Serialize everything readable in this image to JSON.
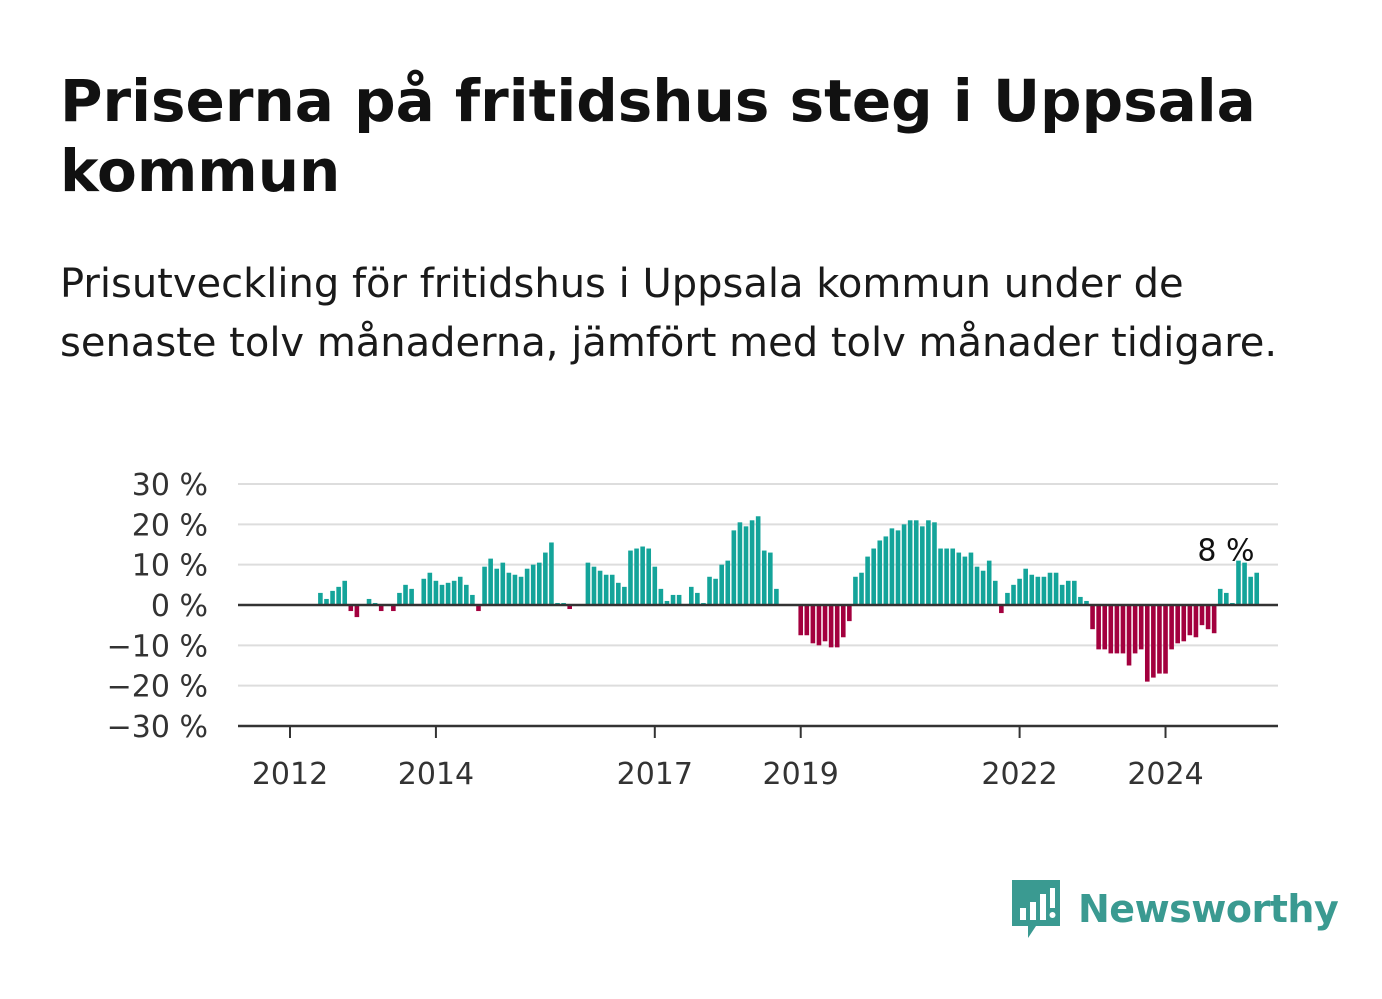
{
  "title": "Priserna på fritidshus steg i Uppsala kommun",
  "subtitle": "Prisutveckling för fritidshus i Uppsala kommun under de senaste tolv månaderna, jämfört med tolv månader tidigare.",
  "brand": {
    "name": "Newsworthy",
    "icon": "newsworthy-bar-icon",
    "color": "#3a9a91"
  },
  "colors": {
    "positive": "#14a49a",
    "negative": "#a3003e",
    "grid": "#dddddd",
    "axis": "#333333"
  },
  "chart_data": {
    "type": "bar",
    "ylim": [
      -30,
      30
    ],
    "yticks": [
      30,
      20,
      10,
      0,
      -10,
      -20,
      -30
    ],
    "ytick_labels": [
      "30 %",
      "20 %",
      "10 %",
      "0 %",
      "−10 %",
      "−20 %",
      "−30 %"
    ],
    "xtick_labels": [
      {
        "label": "2012",
        "year": 2012
      },
      {
        "label": "2014",
        "year": 2014
      },
      {
        "label": "2017",
        "year": 2017
      },
      {
        "label": "2019",
        "year": 2019
      },
      {
        "label": "2022",
        "year": 2022
      },
      {
        "label": "2024",
        "year": 2024
      }
    ],
    "x_start": "2012-01",
    "x_end": "2025-12",
    "last_value_label": "8 %",
    "series": [
      {
        "dates": [
          "2012-01",
          "2012-02",
          "2012-03",
          "2012-04",
          "2012-05",
          "2012-06",
          "2012-07",
          "2012-08",
          "2012-09",
          "2012-10",
          "2012-11",
          "2012-12",
          "2013-01",
          "2013-02",
          "2013-03",
          "2013-04",
          "2013-05",
          "2013-06",
          "2013-07",
          "2013-08",
          "2013-09",
          "2013-10",
          "2013-11",
          "2013-12",
          "2014-01",
          "2014-02",
          "2014-03",
          "2014-04",
          "2014-05",
          "2014-06",
          "2014-07",
          "2014-08",
          "2014-09",
          "2014-10",
          "2014-11",
          "2014-12",
          "2015-01",
          "2015-02",
          "2015-03",
          "2015-04",
          "2015-05",
          "2015-06",
          "2015-07",
          "2015-08",
          "2015-09",
          "2015-10",
          "2015-11",
          "2015-12",
          "2016-01",
          "2016-02",
          "2016-03",
          "2016-04",
          "2016-05",
          "2016-06",
          "2016-07",
          "2016-08",
          "2016-09",
          "2016-10",
          "2016-11",
          "2016-12",
          "2017-01",
          "2017-02",
          "2017-03",
          "2017-04",
          "2017-05",
          "2017-06",
          "2017-07",
          "2017-08",
          "2017-09",
          "2017-10",
          "2017-11",
          "2017-12",
          "2018-01",
          "2018-02",
          "2018-03",
          "2018-04",
          "2018-05",
          "2018-06",
          "2018-07",
          "2018-08",
          "2018-09",
          "2018-10",
          "2018-11",
          "2018-12",
          "2019-01",
          "2019-02",
          "2019-03",
          "2019-04",
          "2019-05",
          "2019-06",
          "2019-07",
          "2019-08",
          "2019-09",
          "2019-10",
          "2019-11",
          "2019-12",
          "2020-01",
          "2020-02",
          "2020-03",
          "2020-04",
          "2020-05",
          "2020-06",
          "2020-07",
          "2020-08",
          "2020-09",
          "2020-10",
          "2020-11",
          "2020-12",
          "2021-01",
          "2021-02",
          "2021-03",
          "2021-04",
          "2021-05",
          "2021-06",
          "2021-07",
          "2021-08",
          "2021-09",
          "2021-10",
          "2021-11",
          "2021-12",
          "2022-01",
          "2022-02",
          "2022-03",
          "2022-04",
          "2022-05",
          "2022-06",
          "2022-07",
          "2022-08",
          "2022-09",
          "2022-10",
          "2022-11",
          "2022-12",
          "2023-01",
          "2023-02",
          "2023-03",
          "2023-04",
          "2023-05",
          "2023-06",
          "2023-07",
          "2023-08",
          "2023-09",
          "2023-10",
          "2023-11",
          "2023-12",
          "2024-01",
          "2024-02",
          "2024-03",
          "2024-04",
          "2024-05",
          "2024-06",
          "2024-07",
          "2024-08",
          "2024-09",
          "2024-10",
          "2024-11",
          "2024-12",
          "2025-01",
          "2025-02",
          "2025-03",
          "2025-04",
          "2025-05",
          "2025-06",
          "2025-07",
          "2025-08",
          "2025-09",
          "2025-10",
          "2025-11",
          "2025-12"
        ],
        "values": [
          0,
          0,
          0,
          0,
          0,
          3,
          1.5,
          3.5,
          4.5,
          6,
          -1.5,
          -3,
          0,
          1.5,
          0.5,
          -1.5,
          0,
          -1.5,
          3,
          5,
          4,
          0,
          6.5,
          8,
          6,
          5,
          5.5,
          6,
          7,
          5,
          2.5,
          -1.5,
          9.5,
          11.5,
          9,
          10.5,
          8,
          7.5,
          7,
          9,
          10,
          10.5,
          13,
          15.5,
          0.5,
          0.5,
          -1,
          0,
          0,
          10.5,
          9.5,
          8.5,
          7.5,
          7.5,
          5.5,
          4.5,
          13.5,
          14,
          14.5,
          14,
          9.5,
          4,
          1,
          2.5,
          2.5,
          0,
          4.5,
          3,
          0.5,
          7,
          6.5,
          10,
          11,
          18.5,
          20.5,
          19.5,
          21,
          22,
          13.5,
          13,
          4,
          0,
          0,
          0,
          -7.5,
          -7.5,
          -9.5,
          -10,
          -9,
          -10.5,
          -10.5,
          -8,
          -4,
          7,
          8,
          12,
          14,
          16,
          17,
          19,
          18.5,
          20,
          21,
          21,
          19.5,
          21,
          20.5,
          14,
          14,
          14,
          13,
          12,
          13,
          9.5,
          8.5,
          11,
          6,
          -2,
          3,
          5,
          6.5,
          9,
          7.5,
          7,
          7,
          8,
          8,
          5,
          6,
          6,
          2,
          1,
          -6,
          -11,
          -11,
          -12,
          -12,
          -12,
          -15,
          -12,
          -11,
          -19,
          -18,
          -17,
          -17,
          -11,
          -9.5,
          -9,
          -7.5,
          -8,
          -5,
          -6,
          -7,
          4,
          3,
          0.5,
          11,
          10.5,
          7,
          8,
          0,
          0,
          0,
          0,
          0,
          0,
          0,
          0
        ]
      }
    ]
  }
}
